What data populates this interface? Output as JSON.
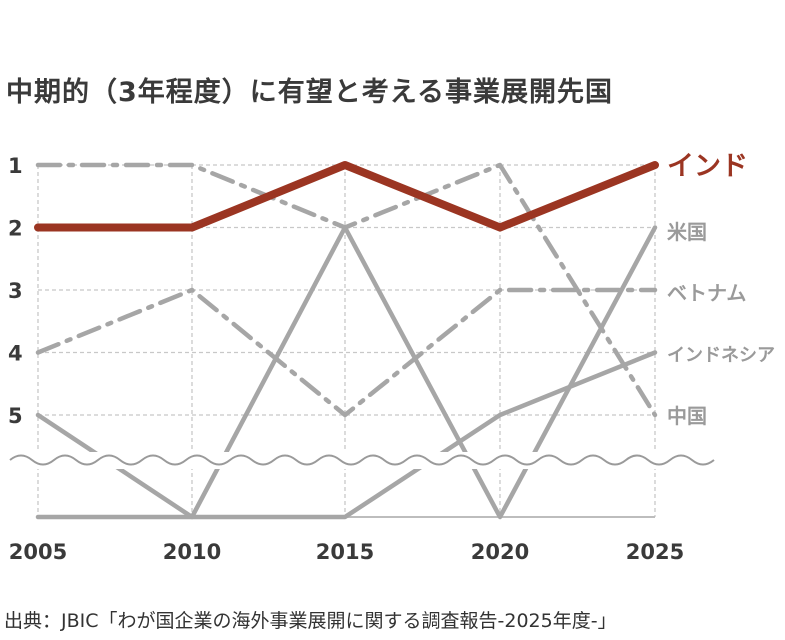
{
  "chart_data": {
    "type": "line",
    "title": "中期的（3年程度）に有望と考える事業展開先国",
    "x": [
      "2005",
      "2010",
      "2015",
      "2020",
      "2025"
    ],
    "y_tick_labels": [
      "1",
      "2",
      "3",
      "4",
      "5"
    ],
    "y_axis": "rank (1 = top)",
    "ylim": [
      1,
      5
    ],
    "axis_break": "below rank 5",
    "grid": true,
    "series": [
      {
        "name": "米国",
        "style": "solid",
        "color": "#a6a6a6",
        "ranks": [
          5,
          "out",
          2,
          "out",
          2
        ]
      },
      {
        "name": "ベトナム",
        "style": "dash-dot",
        "color": "#a6a6a6",
        "ranks": [
          4,
          3,
          5,
          3,
          3
        ]
      },
      {
        "name": "インドネシア",
        "style": "solid",
        "color": "#a6a6a6",
        "ranks": [
          "out",
          "out",
          "out",
          5,
          4
        ]
      },
      {
        "name": "中国",
        "style": "dash-dot",
        "color": "#a6a6a6",
        "ranks": [
          1,
          1,
          2,
          1,
          5
        ]
      },
      {
        "name": "インド",
        "style": "solid",
        "color": "#9b3522",
        "highlight": true,
        "ranks": [
          2,
          2,
          1,
          2,
          1
        ]
      }
    ]
  },
  "source": "出典：JBIC「わが国企業の海外事業展開に関する調査報告-2025年度-」"
}
